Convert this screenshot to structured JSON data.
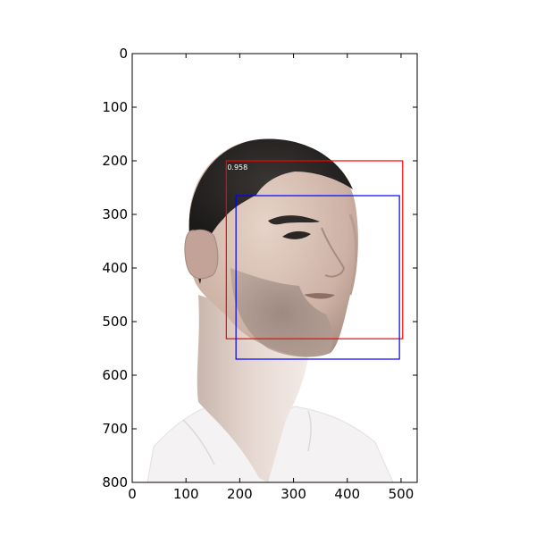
{
  "image": {
    "subject": "portrait-photo-man-head-turned",
    "width": 530,
    "height": 800
  },
  "axes": {
    "x_ticks": [
      0,
      100,
      200,
      300,
      400,
      500
    ],
    "y_ticks": [
      0,
      100,
      200,
      300,
      400,
      500,
      600,
      700,
      800
    ],
    "xlim": [
      0,
      530
    ],
    "ylim": [
      800,
      0
    ]
  },
  "boxes": [
    {
      "name": "detection-box",
      "color": "#ff0000",
      "x0": 175,
      "y0": 200,
      "x1": 503,
      "y1": 532,
      "score": "0.958"
    },
    {
      "name": "ground-truth-box",
      "color": "#0000ff",
      "x0": 193,
      "y0": 265,
      "x1": 497,
      "y1": 570,
      "score": ""
    }
  ]
}
